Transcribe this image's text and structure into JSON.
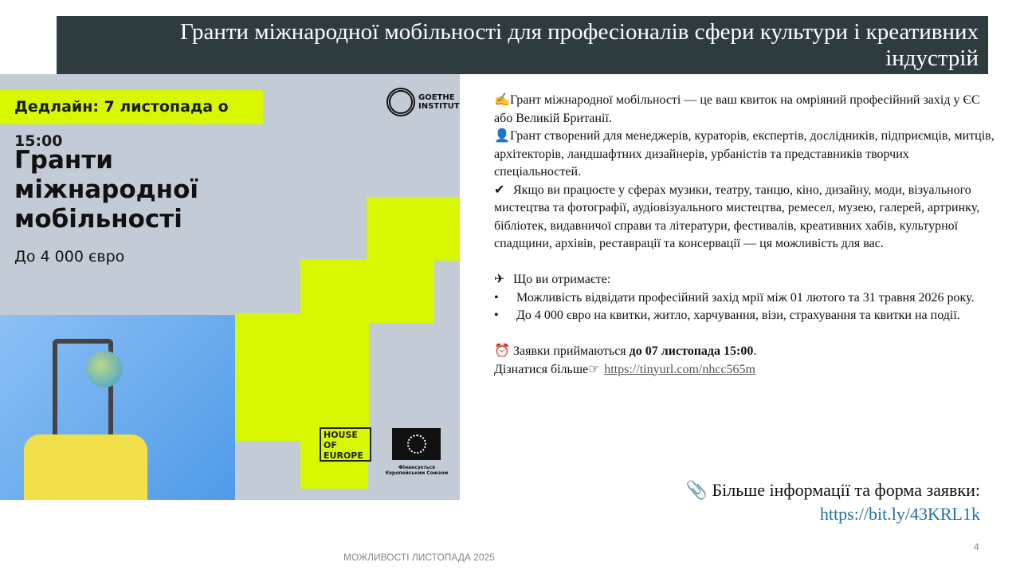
{
  "header": {
    "title": "Гранти міжнародної мобільності для професіоналів сфери культури і креативних індустрій"
  },
  "poster": {
    "deadline": "Дедлайн: 7 листопада о 15:00",
    "title_lines": [
      "Гранти",
      "міжнародної",
      "мобільності"
    ],
    "subtitle": "До 4 000 євро",
    "goethe": "GOETHE INSTITUT",
    "house_of_europe": "HOUSE OF EUROPE",
    "eu_caption": "Фінансується Європейським Союзом",
    "colors": {
      "lime": "#d7f703",
      "grey": "#c3ccd6",
      "blue": "#5fa6ee"
    }
  },
  "body": {
    "p1": {
      "icon": "writing-hand-icon",
      "text": "Грант міжнародної мобільності — це ваш квиток на омріяний професійний захід у ЄС або Великій Британії."
    },
    "p2": {
      "icon": "person-icon",
      "text": "Грант створений для менеджерів, кураторів, експертів, дослідників, підприємців, митців, архітекторів, ландшафтних дизайнерів, урбаністів та представників творчих спеціальностей."
    },
    "p3": {
      "icon": "check-mark-icon",
      "text": " Якщо ви працюєте у сферах музики, театру, танцю, кіно, дизайну, моди, візуального мистецтва та фотографії, аудіовізуального мистецтва, ремесел, музею, галерей, артринку, бібліотек, видавничої справи та літератури, фестивалів, креативних хабів, культурної спадщини, архівів, реставрації та консервації — ця можливість для вас."
    },
    "p4": {
      "icon": "airplane-icon",
      "text": " Що ви отримаєте:"
    },
    "bullets": [
      "Можливість відвідати професійний захід мрії між 01 лютого та 31 травня 2026 року.",
      "До 4 000 євро на квитки, житло, харчування, візи, страхування та квитки на події."
    ],
    "p5": {
      "icon": "alarm-clock-icon",
      "text": " Заявки приймаються ",
      "bold": "до 07 листопада 15:00",
      "end": "."
    },
    "p6": {
      "text": "Дізнатися більше",
      "icon": "pointing-hand-icon",
      "link": "https://tinyurl.com/nhcc565m"
    }
  },
  "more": {
    "icon": "paperclip-icon",
    "text": "Більше інформації та форма заявки:",
    "link": "https://bit.ly/43KRL1k"
  },
  "footer": {
    "text": "МОЖЛИВОСТІ ЛИСТОПАДА 2025",
    "page": "4"
  }
}
